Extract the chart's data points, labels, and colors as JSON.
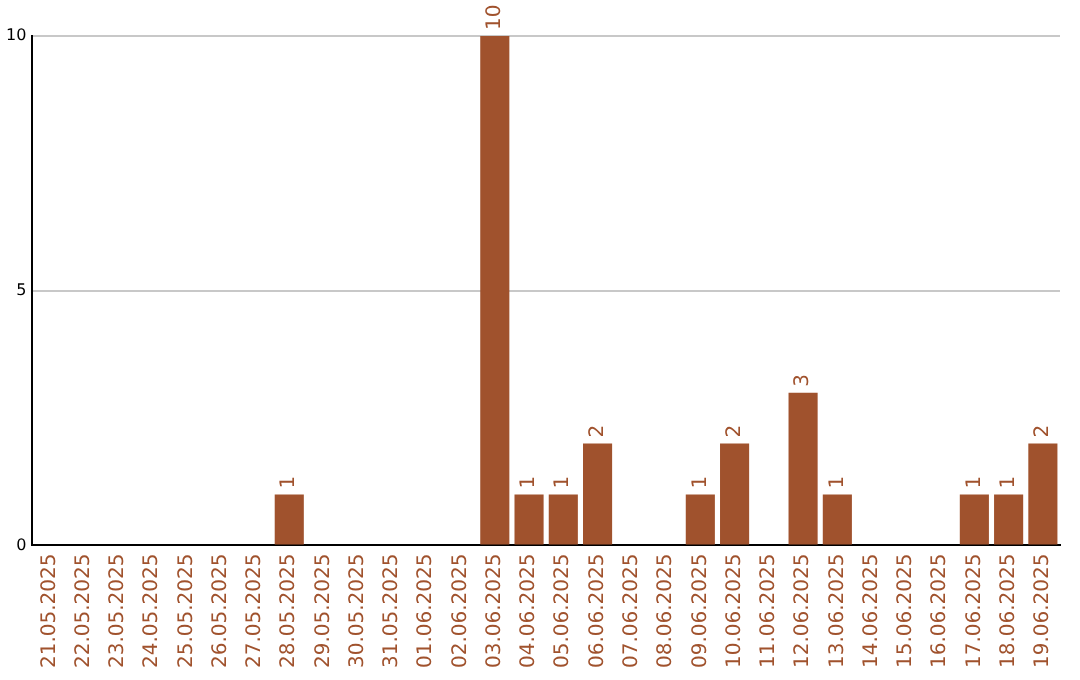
{
  "chart_data": {
    "type": "bar",
    "categories": [
      "21.05.2025",
      "22.05.2025",
      "23.05.2025",
      "24.05.2025",
      "25.05.2025",
      "26.05.2025",
      "27.05.2025",
      "28.05.2025",
      "29.05.2025",
      "30.05.2025",
      "31.05.2025",
      "01.06.2025",
      "02.06.2025",
      "03.06.2025",
      "04.06.2025",
      "05.06.2025",
      "06.06.2025",
      "07.06.2025",
      "08.06.2025",
      "09.06.2025",
      "10.06.2025",
      "11.06.2025",
      "12.06.2025",
      "13.06.2025",
      "14.06.2025",
      "15.06.2025",
      "16.06.2025",
      "17.06.2025",
      "18.06.2025",
      "19.06.2025"
    ],
    "values": [
      0,
      0,
      0,
      0,
      0,
      0,
      0,
      1,
      0,
      0,
      0,
      0,
      0,
      10,
      1,
      1,
      2,
      0,
      0,
      1,
      2,
      0,
      3,
      1,
      0,
      0,
      0,
      1,
      1,
      2
    ],
    "value_labels": [
      null,
      null,
      null,
      null,
      null,
      null,
      null,
      "1",
      null,
      null,
      null,
      null,
      null,
      "10",
      "1",
      "1",
      "2",
      null,
      null,
      "1",
      "2",
      null,
      "3",
      "1",
      null,
      null,
      null,
      "1",
      "1",
      "2"
    ],
    "color": "#a0522d",
    "ylim": [
      0,
      10
    ],
    "yticks": [
      0,
      5,
      10
    ],
    "grid": "y",
    "legend": false
  }
}
